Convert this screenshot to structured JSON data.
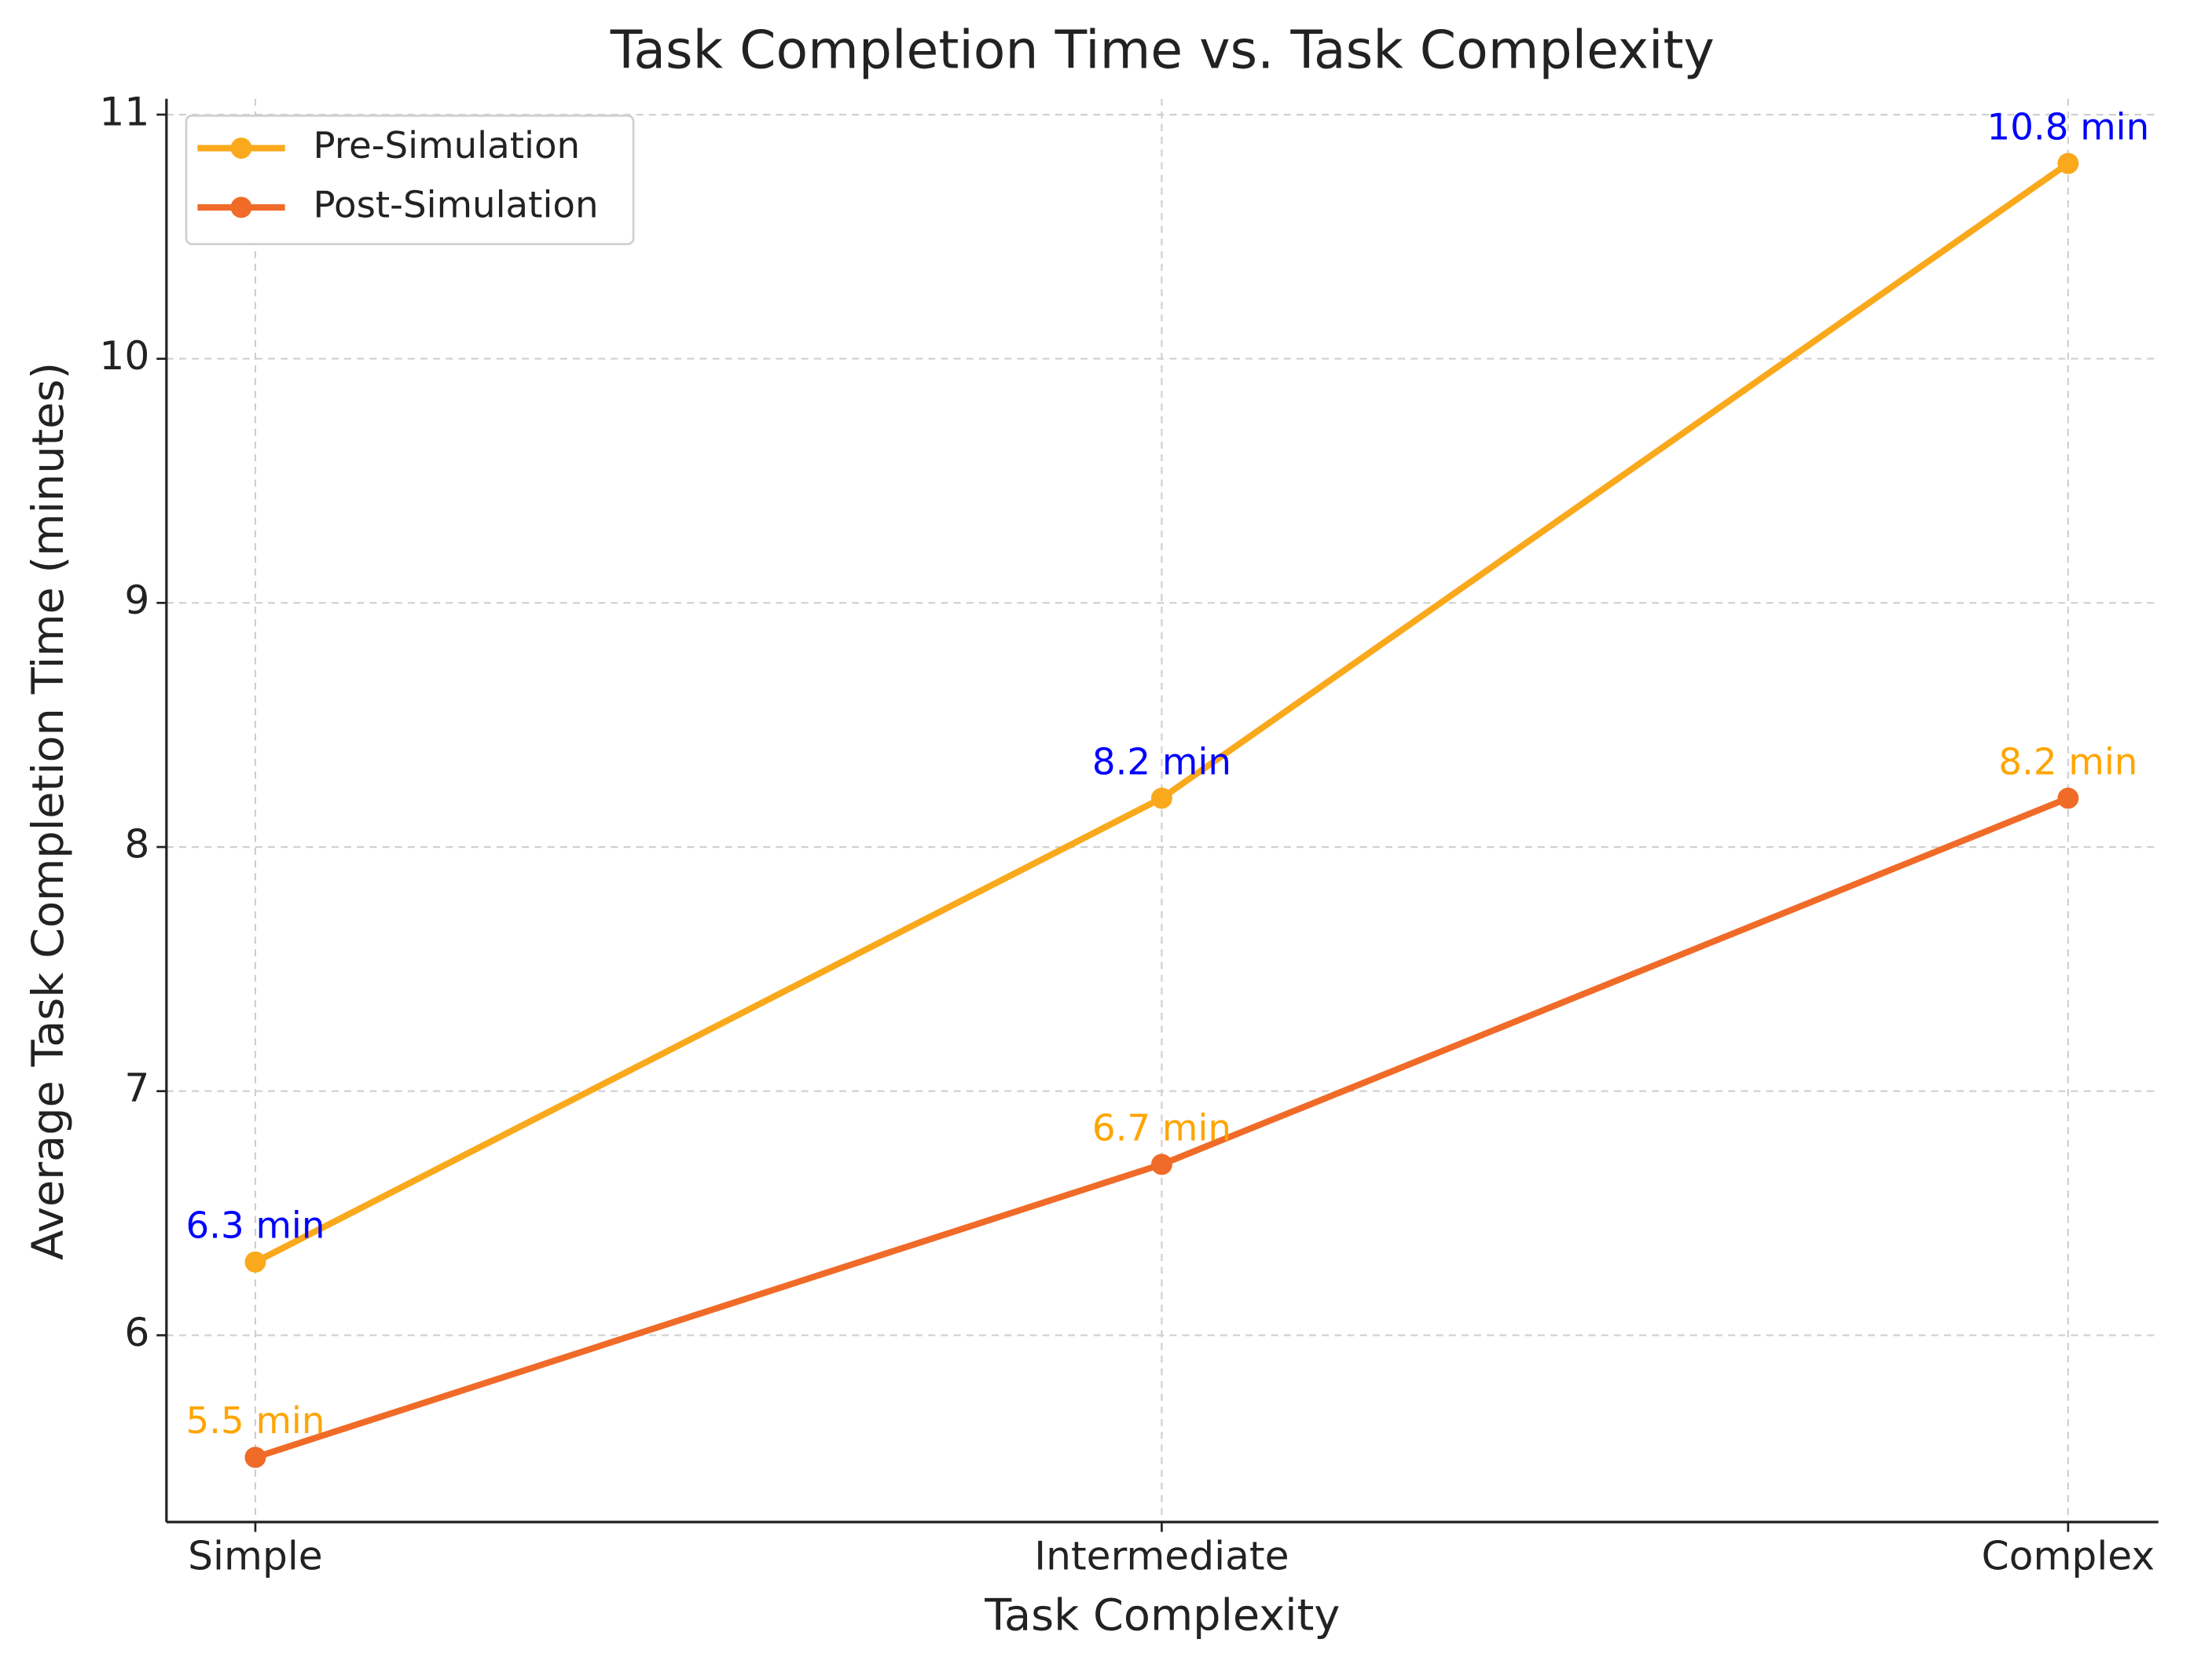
{
  "chart_data": {
    "type": "line",
    "title": "Task Completion Time vs. Task Complexity",
    "x_label": "Task Complexity",
    "y_label": "Average Task Completion Time (minutes)",
    "categories": [
      "Simple",
      "Intermediate",
      "Complex"
    ],
    "series": [
      {
        "name": "Pre-Simulation",
        "color": "#f9a91b",
        "label_color": "#0000ff",
        "values": [
          6.3,
          8.2,
          10.8
        ],
        "value_labels": [
          "6.3 min",
          "8.2 min",
          "10.8 min"
        ]
      },
      {
        "name": "Post-Simulation",
        "color": "#f06a28",
        "label_color": "#ffa500",
        "values": [
          5.5,
          6.7,
          8.2
        ],
        "value_labels": [
          "5.5 min",
          "6.7 min",
          "8.2 min"
        ]
      }
    ],
    "ylim": [
      5.235,
      11.065
    ],
    "yticks": [
      6,
      7,
      8,
      9,
      10,
      11
    ],
    "grid": true,
    "legend": "upper left"
  }
}
